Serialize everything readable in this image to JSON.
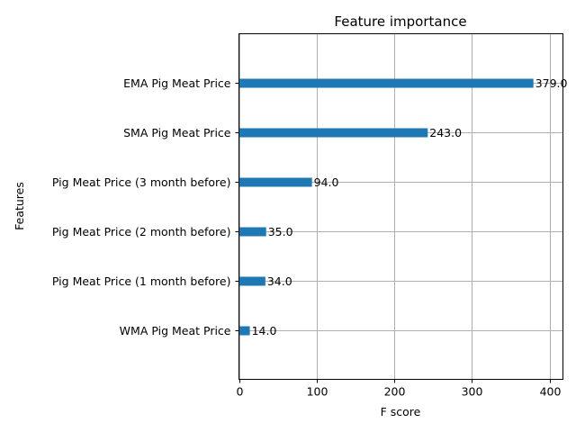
{
  "chart_data": {
    "type": "bar",
    "orientation": "horizontal",
    "title": "Feature importance",
    "xlabel": "F score",
    "ylabel": "Features",
    "xlim": [
      0,
      417
    ],
    "xticks": [
      0,
      100,
      200,
      300,
      400
    ],
    "grid": true,
    "bar_color": "#1f77b4",
    "categories": [
      "EMA Pig Meat Price",
      "SMA Pig Meat Price",
      "Pig Meat Price (3 month before)",
      "Pig Meat Price (2 month before)",
      "Pig Meat Price (1 month before)",
      "WMA Pig Meat Price"
    ],
    "values": [
      379.0,
      243.0,
      94.0,
      35.0,
      34.0,
      14.0
    ],
    "value_labels": [
      "379.0",
      "243.0",
      "94.0",
      "35.0",
      "34.0",
      "14.0"
    ]
  }
}
